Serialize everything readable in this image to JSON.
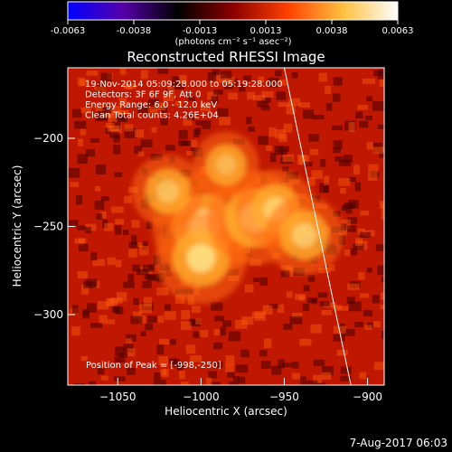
{
  "colorbar": {
    "ticks": [
      "-0.0063",
      "-0.0038",
      "-0.0013",
      "0.0013",
      "0.0038",
      "0.0063"
    ],
    "unit_label": "(photons cm⁻² s⁻¹ asec⁻²)",
    "range": [
      -0.0063,
      0.0063
    ],
    "colors": [
      "#0000ff",
      "#5500aa",
      "#000000",
      "#8b0000",
      "#ff4000",
      "#ffc040",
      "#ffffff"
    ]
  },
  "chart_data": {
    "type": "heatmap",
    "title": "Reconstructed RHESSI Image",
    "xlabel": "Heliocentric X (arcsec)",
    "ylabel": "Heliocentric Y (arcsec)",
    "xlim": [
      -1080,
      -890
    ],
    "ylim": [
      -340,
      -160
    ],
    "xticks": [
      -1050,
      -1000,
      -950,
      -900
    ],
    "yticks": [
      -200,
      -250,
      -300
    ],
    "info_lines": [
      "19-Nov-2014 05:09:28.000 to 05:19:28.000",
      "Detectors: 3F 6F 9F, Att 0",
      "Energy Range: 6.0 - 12.0 keV",
      "Clean     Total counts: 4.26E+04"
    ],
    "peak_label": "Position of Peak = [-998,-250]",
    "sources": [
      {
        "x": -998,
        "y": -250,
        "intensity": 1.0
      },
      {
        "x": -1000,
        "y": -268,
        "intensity": 0.8
      },
      {
        "x": -968,
        "y": -245,
        "intensity": 0.85
      },
      {
        "x": -955,
        "y": -240,
        "intensity": 0.6
      },
      {
        "x": -938,
        "y": -255,
        "intensity": 0.6
      },
      {
        "x": -1020,
        "y": -230,
        "intensity": 0.5
      },
      {
        "x": -985,
        "y": -215,
        "intensity": 0.4
      }
    ],
    "limb_line": [
      {
        "x": -950,
        "y": -160
      },
      {
        "x": -910,
        "y": -340
      }
    ]
  },
  "footer": {
    "date": "7-Aug-2017 06:03"
  }
}
